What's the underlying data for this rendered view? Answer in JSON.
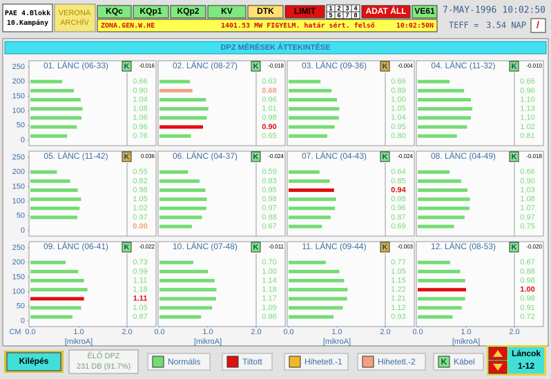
{
  "header": {
    "plant": "PAE 4.Blokk",
    "campaign": "10.Kampány",
    "site": "VERONA",
    "mode": "ARCHÍV",
    "buttons": [
      "KQc",
      "KQp1",
      "KQp2",
      "KV",
      "DTK",
      "LIMIT"
    ],
    "group_digits": [
      "1",
      "2",
      "3",
      "4",
      "5",
      "6",
      "7",
      "8"
    ],
    "alarm": "ADAT ÁLL",
    "unit": "VE61",
    "date": "7-MAY-1996",
    "time": "10:02:50",
    "message": {
      "zone": "ZONA.GEN.W.HE",
      "text": "1401.53 MW FIGYELM. határ sért. felső",
      "time": "10:02:50N"
    },
    "teff_label": "TEFF =",
    "teff_value": "3.54 NAP",
    "slash": "/"
  },
  "panel_title": "DPZ MÉRÉSEK ÁTTEKINTÉSE",
  "chart_data": [
    {
      "type": "bar",
      "title": "01. LÁNC (06-33)",
      "k_label": "K",
      "k_value": "-0.016",
      "k_color": "#80e880",
      "xlim": [
        0,
        2
      ],
      "ylim": [
        0,
        250
      ],
      "yticks": [
        0,
        50,
        100,
        150,
        200,
        250
      ],
      "y": [
        200,
        169,
        138,
        107,
        76,
        45,
        14
      ],
      "values": [
        0.66,
        0.9,
        1.04,
        1.08,
        1.06,
        0.96,
        0.76
      ],
      "value_labels": [
        "0.66",
        "0.90",
        "1.04",
        "1.08",
        "1.06",
        "0.96",
        "0.76"
      ],
      "colors": [
        "#74dc74",
        "#74dc74",
        "#74dc74",
        "#74dc74",
        "#74dc74",
        "#74dc74",
        "#74dc74"
      ]
    },
    {
      "type": "bar",
      "title": "02. LÁNC (08-27)",
      "k_label": "K",
      "k_value": "-0.018",
      "k_color": "#80e880",
      "xlim": [
        0,
        2
      ],
      "ylim": [
        0,
        250
      ],
      "y": [
        200,
        169,
        138,
        107,
        76,
        45,
        14
      ],
      "values": [
        0.63,
        0.68,
        0.96,
        1.01,
        0.98,
        0.9,
        0.65
      ],
      "value_labels": [
        "0.63",
        "0.68",
        "0.96",
        "1.01",
        "0.98",
        "0.90",
        "0.65"
      ],
      "colors": [
        "#74dc74",
        "#f4a080",
        "#74dc74",
        "#74dc74",
        "#74dc74",
        "#e01010",
        "#74dc74"
      ]
    },
    {
      "type": "bar",
      "title": "03. LÁNC (09-36)",
      "k_label": "K",
      "k_value": "-0.004",
      "k_color": "#d8b040",
      "xlim": [
        0,
        2
      ],
      "ylim": [
        0,
        250
      ],
      "y": [
        200,
        169,
        138,
        107,
        76,
        45,
        14
      ],
      "values": [
        0.66,
        0.89,
        1.0,
        1.05,
        1.04,
        0.95,
        0.8
      ],
      "value_labels": [
        "0.66",
        "0.89",
        "1.00",
        "1.05",
        "1.04",
        "0.95",
        "0.80"
      ],
      "colors": [
        "#74dc74",
        "#74dc74",
        "#74dc74",
        "#74dc74",
        "#74dc74",
        "#74dc74",
        "#74dc74"
      ]
    },
    {
      "type": "bar",
      "title": "04. LÁNC (11-32)",
      "k_label": "K",
      "k_value": "-0.010",
      "k_color": "#80e880",
      "xlim": [
        0,
        2
      ],
      "ylim": [
        0,
        250
      ],
      "y": [
        200,
        169,
        138,
        107,
        76,
        45,
        14
      ],
      "values": [
        0.66,
        0.96,
        1.1,
        1.13,
        1.1,
        1.02,
        0.81
      ],
      "value_labels": [
        "0.66",
        "0.96",
        "1.10",
        "1.13",
        "1.10",
        "1.02",
        "0.81"
      ],
      "colors": [
        "#74dc74",
        "#74dc74",
        "#74dc74",
        "#74dc74",
        "#74dc74",
        "#74dc74",
        "#74dc74"
      ]
    },
    {
      "type": "bar",
      "title": "05. LÁNC (11-42)",
      "k_label": "K",
      "k_value": "0.036",
      "k_color": "#d8b040",
      "xlim": [
        0,
        2
      ],
      "ylim": [
        0,
        250
      ],
      "yticks": [
        0,
        50,
        100,
        150,
        200,
        250
      ],
      "y": [
        200,
        169,
        138,
        107,
        76,
        45,
        14
      ],
      "values": [
        0.55,
        0.82,
        0.98,
        1.05,
        1.02,
        0.97,
        0.0
      ],
      "value_labels": [
        "0.55",
        "0.82",
        "0.98",
        "1.05",
        "1.02",
        "0.97",
        "0.00"
      ],
      "colors": [
        "#74dc74",
        "#74dc74",
        "#74dc74",
        "#74dc74",
        "#74dc74",
        "#74dc74",
        "#f4a080"
      ]
    },
    {
      "type": "bar",
      "title": "06. LÁNC (04-37)",
      "k_label": "K",
      "k_value": "-0.024",
      "k_color": "#80e880",
      "xlim": [
        0,
        2
      ],
      "ylim": [
        0,
        250
      ],
      "y": [
        200,
        169,
        138,
        107,
        76,
        45,
        14
      ],
      "values": [
        0.59,
        0.83,
        0.95,
        0.98,
        0.97,
        0.88,
        0.67
      ],
      "value_labels": [
        "0.59",
        "0.83",
        "0.95",
        "0.98",
        "0.97",
        "0.88",
        "0.67"
      ],
      "colors": [
        "#74dc74",
        "#74dc74",
        "#74dc74",
        "#74dc74",
        "#74dc74",
        "#74dc74",
        "#74dc74"
      ]
    },
    {
      "type": "bar",
      "title": "07. LÁNC (04-43)",
      "k_label": "K",
      "k_value": "-0.024",
      "k_color": "#80e880",
      "xlim": [
        0,
        2
      ],
      "ylim": [
        0,
        250
      ],
      "y": [
        200,
        169,
        138,
        107,
        76,
        45,
        14
      ],
      "values": [
        0.64,
        0.85,
        0.94,
        0.98,
        0.96,
        0.87,
        0.69
      ],
      "value_labels": [
        "0.64",
        "0.85",
        "0.94",
        "0.98",
        "0.96",
        "0.87",
        "0.69"
      ],
      "colors": [
        "#74dc74",
        "#74dc74",
        "#e01010",
        "#74dc74",
        "#74dc74",
        "#74dc74",
        "#74dc74"
      ]
    },
    {
      "type": "bar",
      "title": "08. LÁNC (04-49)",
      "k_label": "K",
      "k_value": "-0.018",
      "k_color": "#80e880",
      "xlim": [
        0,
        2
      ],
      "ylim": [
        0,
        250
      ],
      "y": [
        200,
        169,
        138,
        107,
        76,
        45,
        14
      ],
      "values": [
        0.66,
        0.9,
        1.03,
        1.08,
        1.07,
        0.97,
        0.75
      ],
      "value_labels": [
        "0.66",
        "0.90",
        "1.03",
        "1.08",
        "1.07",
        "0.97",
        "0.75"
      ],
      "colors": [
        "#74dc74",
        "#74dc74",
        "#74dc74",
        "#74dc74",
        "#74dc74",
        "#74dc74",
        "#74dc74"
      ]
    },
    {
      "type": "bar",
      "title": "09. LÁNC (06-41)",
      "k_label": "K",
      "k_value": "-0.022",
      "k_color": "#80e880",
      "xlim": [
        0,
        2
      ],
      "ylim": [
        0,
        250
      ],
      "yticks": [
        0,
        50,
        100,
        150,
        200,
        250
      ],
      "ylabel": "CM",
      "xlabel": "[mikroA]",
      "xticks": [
        {
          "value": 0,
          "label": "0.0"
        },
        {
          "value": 1,
          "label": "1.0"
        },
        {
          "value": 2,
          "label": "2.0"
        }
      ],
      "y": [
        200,
        169,
        138,
        107,
        76,
        45,
        14
      ],
      "values": [
        0.73,
        0.99,
        1.11,
        1.18,
        1.11,
        1.05,
        0.87
      ],
      "value_labels": [
        "0.73",
        "0.99",
        "1.11",
        "1.18",
        "1.11",
        "1.05",
        "0.87"
      ],
      "colors": [
        "#74dc74",
        "#74dc74",
        "#74dc74",
        "#74dc74",
        "#e01010",
        "#74dc74",
        "#74dc74"
      ]
    },
    {
      "type": "bar",
      "title": "10. LÁNC (07-48)",
      "k_label": "K",
      "k_value": "-0.011",
      "k_color": "#80e880",
      "xlim": [
        0,
        2
      ],
      "ylim": [
        0,
        250
      ],
      "xlabel": "[mikroA]",
      "xticks": [
        {
          "value": 0,
          "label": "0.0"
        },
        {
          "value": 1,
          "label": "1.0"
        },
        {
          "value": 2,
          "label": "2.0"
        }
      ],
      "y": [
        200,
        169,
        138,
        107,
        76,
        45,
        14
      ],
      "values": [
        0.7,
        1.0,
        1.14,
        1.18,
        1.17,
        1.09,
        0.86
      ],
      "value_labels": [
        "0.70",
        "1.00",
        "1.14",
        "1.18",
        "1.17",
        "1.09",
        "0.86"
      ],
      "colors": [
        "#74dc74",
        "#74dc74",
        "#74dc74",
        "#74dc74",
        "#74dc74",
        "#74dc74",
        "#74dc74"
      ]
    },
    {
      "type": "bar",
      "title": "11. LÁNC (09-44)",
      "k_label": "K",
      "k_value": "-0.003",
      "k_color": "#d8b040",
      "xlim": [
        0,
        2
      ],
      "ylim": [
        0,
        250
      ],
      "xlabel": "[mikroA]",
      "xticks": [
        {
          "value": 0,
          "label": "0.0"
        },
        {
          "value": 1,
          "label": "1.0"
        },
        {
          "value": 2,
          "label": "2.0"
        }
      ],
      "y": [
        200,
        169,
        138,
        107,
        76,
        45,
        14
      ],
      "values": [
        0.77,
        1.05,
        1.15,
        1.22,
        1.21,
        1.12,
        0.93
      ],
      "value_labels": [
        "0.77",
        "1.05",
        "1.15",
        "1.22",
        "1.21",
        "1.12",
        "0.93"
      ],
      "colors": [
        "#74dc74",
        "#74dc74",
        "#74dc74",
        "#74dc74",
        "#74dc74",
        "#74dc74",
        "#74dc74"
      ]
    },
    {
      "type": "bar",
      "title": "12. LÁNC (08-53)",
      "k_label": "K",
      "k_value": "-0.020",
      "k_color": "#80e880",
      "xlim": [
        0,
        2
      ],
      "ylim": [
        0,
        250
      ],
      "xlabel": "[mikroA]",
      "xticks": [
        {
          "value": 0,
          "label": "0.0"
        },
        {
          "value": 1,
          "label": "1.0"
        },
        {
          "value": 2,
          "label": "2.0"
        }
      ],
      "y": [
        200,
        169,
        138,
        107,
        76,
        45,
        14
      ],
      "values": [
        0.67,
        0.88,
        0.98,
        1.0,
        0.98,
        0.91,
        0.72
      ],
      "value_labels": [
        "0.67",
        "0.88",
        "0.98",
        "1.00",
        "0.98",
        "0.91",
        "0.72"
      ],
      "colors": [
        "#74dc74",
        "#74dc74",
        "#74dc74",
        "#e01010",
        "#74dc74",
        "#74dc74",
        "#74dc74"
      ]
    }
  ],
  "footer": {
    "exit": "Kilépés",
    "live_title": "ÉLŐ DPZ",
    "live_count": "231 DB (91.7%)",
    "legend": [
      {
        "name": "Normális",
        "color": "#74dc74"
      },
      {
        "name": "Tiltott",
        "color": "#e01010"
      },
      {
        "name": "Hihetetl.-1",
        "color": "#f0b828"
      },
      {
        "name": "Hihetetl.-2",
        "color": "#f4a080"
      },
      {
        "name": "Kábel",
        "icon": "K",
        "color": "#80e880"
      }
    ],
    "chains_label": "Láncok",
    "chains_range": "1-12"
  }
}
